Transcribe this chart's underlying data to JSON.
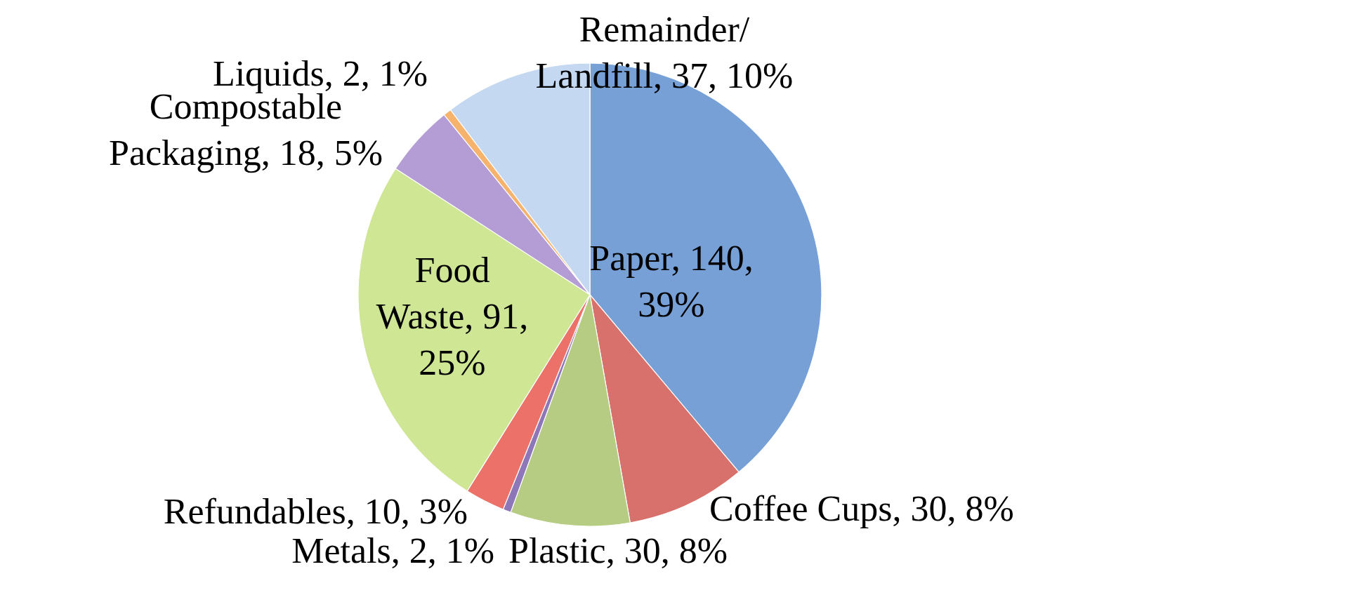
{
  "chart_data": {
    "type": "pie",
    "categories": [
      "Paper",
      "Coffee Cups",
      "Plastic",
      "Metals",
      "Refundables",
      "Food Waste",
      "Compostable Packaging",
      "Liquids",
      "Remainder/Landfill"
    ],
    "values": [
      140,
      30,
      30,
      2,
      10,
      91,
      18,
      2,
      37
    ],
    "value_labels": [
      "140, 39%",
      "30, 8%",
      "30, 8%",
      "2, 1%",
      "10, 3%",
      "91, 25%",
      "18, 5%",
      "2, 1%",
      "37, 10%"
    ],
    "colors": [
      "#76a0d6",
      "#d8706b",
      "#b5cc82",
      "#8e77b8",
      "#ec7168",
      "#cfe694",
      "#b49cd4",
      "#f7b36b",
      "#c5d8f2"
    ]
  }
}
